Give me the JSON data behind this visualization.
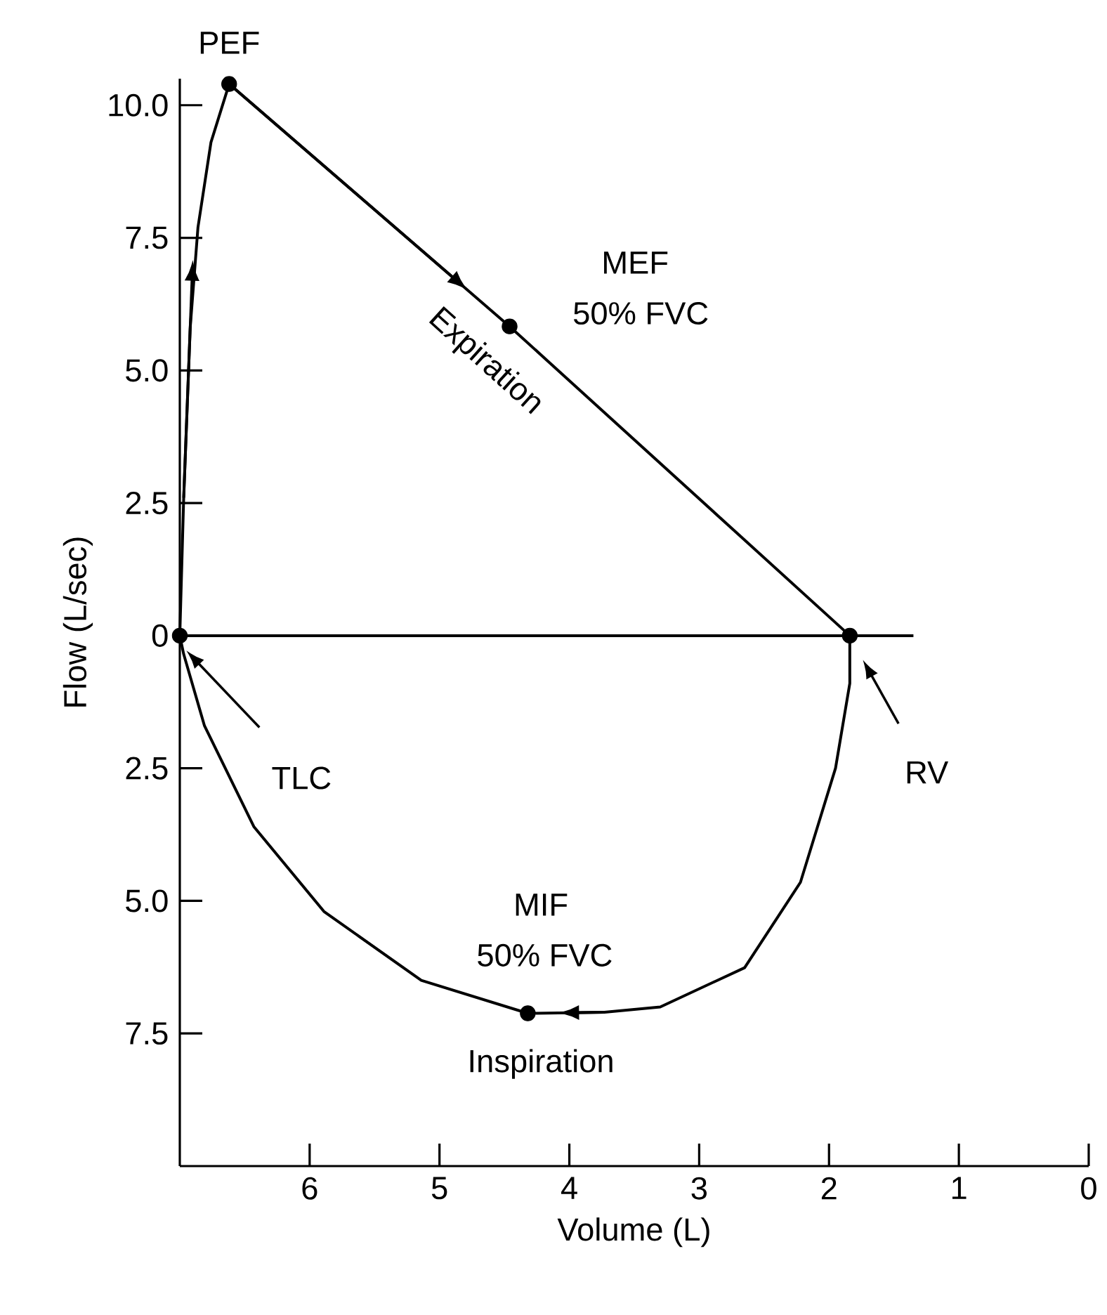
{
  "chart_data": {
    "type": "line",
    "xlabel": "Volume (L)",
    "ylabel": "Flow (L/sec)",
    "xlim": [
      7,
      0
    ],
    "ylim": [
      -10,
      10.5
    ],
    "xticks": [
      6,
      5,
      4,
      3,
      2,
      1,
      0
    ],
    "yticks": [
      {
        "value": 10,
        "label": "10.0"
      },
      7.5,
      {
        "value": 5,
        "label": "5.0"
      },
      2.5,
      0,
      {
        "value": -2.5,
        "label": "2.5"
      },
      {
        "value": -5,
        "label": "5.0"
      },
      {
        "value": -7.5,
        "label": "7.5"
      }
    ],
    "series": [
      {
        "type": "line",
        "color": "#000000",
        "x": [
          7.0,
          6.97,
          6.92,
          6.86,
          6.76,
          6.62,
          4.46,
          1.84
        ],
        "values": [
          0,
          2.6,
          5.8,
          7.7,
          9.3,
          10.4,
          5.83,
          0
        ]
      },
      {
        "type": "line",
        "color": "#000000",
        "x": [
          1.84,
          1.84,
          1.95,
          2.22,
          2.65,
          3.3,
          3.73,
          4.32,
          5.14,
          5.89,
          6.43,
          6.81,
          6.97,
          7.0
        ],
        "values": [
          0,
          -0.9,
          -2.5,
          -4.65,
          -6.26,
          -7.0,
          -7.1,
          -7.12,
          -6.5,
          -5.2,
          -3.6,
          -1.7,
          -0.35,
          0
        ]
      },
      {
        "type": "line",
        "color": "#000000",
        "x": [
          7.0,
          1.35
        ],
        "values": [
          0,
          0
        ]
      },
      {
        "type": "scatter",
        "color": "#000000",
        "marker": "circle",
        "x": [
          7.0,
          6.62,
          4.46,
          1.84,
          4.32
        ],
        "values": [
          0,
          10.4,
          5.83,
          0,
          -7.12
        ]
      }
    ],
    "annotations": [
      {
        "text": "PEF",
        "x": 6.62,
        "y": 10.4
      },
      "MEF",
      {
        "text": "50% FVC",
        "x": 4.46,
        "y": 5.83
      },
      {
        "text": "Expiration",
        "x": 4.46,
        "y": 5.83
      },
      "TLC",
      "RV",
      "MIF",
      {
        "text": "50% FVC",
        "x": 4.32,
        "y": -7.12
      },
      {
        "text": "Inspiration",
        "x": 4.32,
        "y": -7.12
      }
    ]
  }
}
